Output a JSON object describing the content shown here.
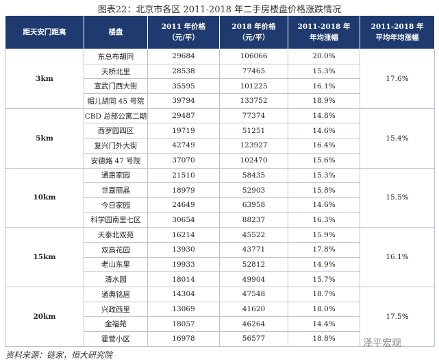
{
  "header": {
    "title": "图表22：北京市各区 2011-2018 年二手房楼盘价格涨跌情况"
  },
  "table": {
    "columns": [
      [
        "距天安门距离"
      ],
      [
        "楼盘"
      ],
      [
        "2011 年价格",
        "（元/平）"
      ],
      [
        "2018 年价格",
        "（元/平）"
      ],
      [
        "2011-2018 年",
        "年均涨幅"
      ],
      [
        "2011-2018 年",
        "平均年均涨幅"
      ]
    ],
    "groups": [
      {
        "distance": "3km",
        "average": "17.6%",
        "rows": [
          [
            "东总布胡同",
            "29684",
            "106066",
            "20.0%"
          ],
          [
            "天桥北里",
            "28538",
            "77465",
            "15.3%"
          ],
          [
            "宣武门西大街",
            "35595",
            "101225",
            "16.1%"
          ],
          [
            "帽儿胡同 45 号院",
            "39794",
            "133752",
            "18.9%"
          ]
        ]
      },
      {
        "distance": "5km",
        "average": "15.4%",
        "rows": [
          [
            "CBD 总部公寓二期",
            "29487",
            "77374",
            "14.8%"
          ],
          [
            "西罗园四区",
            "19719",
            "51251",
            "14.6%"
          ],
          [
            "复兴门外大街",
            "42749",
            "123927",
            "16.4%"
          ],
          [
            "安德路 47 号院",
            "37070",
            "102470",
            "15.6%"
          ]
        ]
      },
      {
        "distance": "10km",
        "average": "15.5%",
        "rows": [
          [
            "通惠家园",
            "21510",
            "58435",
            "15.3%"
          ],
          [
            "世嘉丽晶",
            "18979",
            "52903",
            "15.8%"
          ],
          [
            "今日家园",
            "24649",
            "63958",
            "14.6%"
          ],
          [
            "科学园南里七区",
            "30654",
            "88237",
            "16.3%"
          ]
        ]
      },
      {
        "distance": "15km",
        "average": "16.1%",
        "rows": [
          [
            "天泰北双苑",
            "16214",
            "45522",
            "15.9%"
          ],
          [
            "双高花园",
            "13930",
            "43771",
            "17.8%"
          ],
          [
            "老山东里",
            "19933",
            "52812",
            "14.9%"
          ],
          [
            "清水园",
            "18014",
            "49904",
            "15.7%"
          ]
        ]
      },
      {
        "distance": "20km",
        "average": "17.5%",
        "rows": [
          [
            "通典铭居",
            "14304",
            "47548",
            "18.7%"
          ],
          [
            "兴政西里",
            "13069",
            "41620",
            "18.0%"
          ],
          [
            "金福苑",
            "18057",
            "46264",
            "14.4%"
          ],
          [
            "霍营小区",
            "16978",
            "56577",
            "18.8%"
          ]
        ]
      }
    ]
  },
  "footer": {
    "source": "资料来源：链家，恒大研究院",
    "watermark": "泽平宏观"
  }
}
